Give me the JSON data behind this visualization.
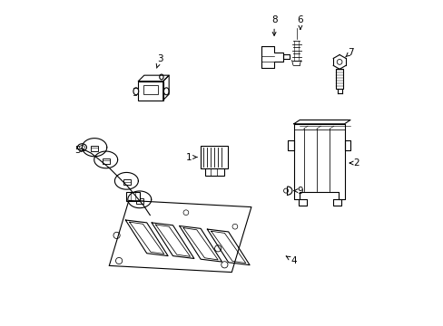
{
  "bg_color": "#ffffff",
  "line_color": "#000000",
  "fig_width": 4.89,
  "fig_height": 3.6,
  "dpi": 100,
  "label_positions": {
    "1": [
      0.398,
      0.518,
      0.425,
      0.518
    ],
    "2": [
      0.91,
      0.5,
      0.888,
      0.5
    ],
    "3": [
      0.31,
      0.82,
      0.3,
      0.79
    ],
    "4": [
      0.72,
      0.2,
      0.695,
      0.215
    ],
    "5": [
      0.058,
      0.54,
      0.082,
      0.54
    ],
    "6": [
      0.74,
      0.94,
      0.74,
      0.9
    ],
    "7": [
      0.895,
      0.84,
      0.878,
      0.825
    ],
    "8": [
      0.66,
      0.94,
      0.66,
      0.88
    ],
    "9": [
      0.74,
      0.415,
      0.718,
      0.415
    ]
  }
}
